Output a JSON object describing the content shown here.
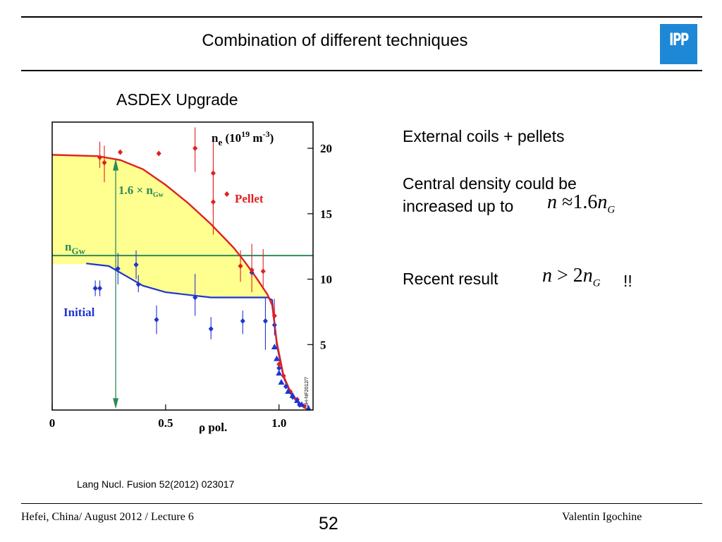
{
  "slide": {
    "title": "Combination of different techniques",
    "subtitle": "ASDEX Upgrade",
    "logo_text": "IPP",
    "logo_color": "#1f88d6"
  },
  "text": {
    "line1": "External coils  + pellets",
    "line2": "Central density could be",
    "line3": "increased up to",
    "line4": "Recent result",
    "exclaim": "!!"
  },
  "formula1": {
    "lhs": "n",
    "op": "≈",
    "coef": "1.6",
    "var": "n",
    "sub": "G"
  },
  "formula2": {
    "lhs": "n",
    "op": ">",
    "coef": "2",
    "var": "n",
    "sub": "G"
  },
  "citation": "Lang Nucl. Fusion 52(2012) 023017",
  "footer": {
    "left": "Hefei, China/ August 2012 / Lecture 6",
    "page": "52",
    "right": "Valentin Igochine"
  },
  "chart_data": {
    "type": "line",
    "ylabel": "n_e (10^19 m^-3)",
    "xlabel": "ρ  pol.",
    "xlim": [
      0,
      1.15
    ],
    "ylim": [
      0,
      22
    ],
    "x_ticks": [
      "0",
      "0.5",
      "1.0"
    ],
    "x_tick_values": [
      0,
      0.5,
      1.0
    ],
    "y_ticks": [
      "5",
      "10",
      "15",
      "20"
    ],
    "y_tick_values": [
      5,
      10,
      15,
      20
    ],
    "nGw_level": 11.8,
    "nGw_label": "n_Gw",
    "arrow_label": "1.6 × n_Gw",
    "watermark": "pH-NF2012/7",
    "colors": {
      "pellet": "#e02020",
      "initial": "#1e35d0",
      "ngw": "#2e8a5a",
      "fill": "#ffff90"
    },
    "series": [
      {
        "name": "Pellet",
        "x": [
          0,
          0.2,
          0.3,
          0.4,
          0.5,
          0.6,
          0.7,
          0.8,
          0.85,
          0.9,
          0.95,
          0.97,
          0.99,
          1.02,
          1.05,
          1.08,
          1.12
        ],
        "y": [
          19.5,
          19.4,
          19.1,
          18.4,
          17.2,
          15.8,
          14.2,
          12.4,
          11.3,
          10.1,
          8.8,
          8.0,
          5.2,
          2.6,
          1.4,
          0.7,
          0.1
        ]
      },
      {
        "name": "Initial",
        "x": [
          0.15,
          0.25,
          0.3,
          0.35,
          0.4,
          0.5,
          0.6,
          0.7,
          0.8,
          0.9,
          0.95,
          0.97,
          0.99,
          1.02,
          1.05,
          1.08,
          1.12
        ],
        "y": [
          11.2,
          11.0,
          10.5,
          10.0,
          9.5,
          9.0,
          8.8,
          8.6,
          8.6,
          8.6,
          8.6,
          8.4,
          5.0,
          2.5,
          1.3,
          0.6,
          0.1
        ]
      }
    ],
    "pellet_points": [
      {
        "x": 0.21,
        "y": 19.3,
        "lo": 18.5,
        "hi": 20.5
      },
      {
        "x": 0.23,
        "y": 18.9,
        "lo": 17.4,
        "hi": 20.2
      },
      {
        "x": 0.3,
        "y": 19.7,
        "lo": 19.7,
        "hi": 19.7
      },
      {
        "x": 0.47,
        "y": 19.6,
        "lo": 19.6,
        "hi": 19.6
      },
      {
        "x": 0.63,
        "y": 20.0,
        "lo": 18.2,
        "hi": 21.6
      },
      {
        "x": 0.71,
        "y": 18.1,
        "lo": 15.0,
        "hi": 20.9
      },
      {
        "x": 0.71,
        "y": 15.9,
        "lo": 13.4,
        "hi": 17.8
      },
      {
        "x": 0.77,
        "y": 16.5,
        "lo": 16.5,
        "hi": 16.5
      },
      {
        "x": 0.83,
        "y": 11.0,
        "lo": 9.8,
        "hi": 12.2
      },
      {
        "x": 0.88,
        "y": 10.7,
        "lo": 9.0,
        "hi": 12.7
      },
      {
        "x": 0.93,
        "y": 10.6,
        "lo": 9.2,
        "hi": 12.3
      },
      {
        "x": 0.98,
        "y": 7.2,
        "lo": 6.3,
        "hi": 8.5
      },
      {
        "x": 1.0,
        "y": 3.5,
        "lo": 3.5,
        "hi": 3.5
      },
      {
        "x": 1.02,
        "y": 2.6,
        "lo": 2.6,
        "hi": 2.6
      },
      {
        "x": 1.05,
        "y": 1.4,
        "lo": 1.4,
        "hi": 1.4
      },
      {
        "x": 1.08,
        "y": 0.8,
        "lo": 0.8,
        "hi": 0.8
      },
      {
        "x": 1.11,
        "y": 0.3,
        "lo": 0.3,
        "hi": 0.3
      }
    ],
    "initial_points": [
      {
        "x": 0.19,
        "y": 9.3,
        "lo": 8.7,
        "hi": 9.9
      },
      {
        "x": 0.21,
        "y": 9.3,
        "lo": 8.7,
        "hi": 9.9
      },
      {
        "x": 0.29,
        "y": 10.8,
        "lo": 9.6,
        "hi": 12.0
      },
      {
        "x": 0.37,
        "y": 11.1,
        "lo": 10.0,
        "hi": 12.2
      },
      {
        "x": 0.38,
        "y": 9.6,
        "lo": 9.0,
        "hi": 10.3
      },
      {
        "x": 0.46,
        "y": 6.9,
        "lo": 5.8,
        "hi": 8.0
      },
      {
        "x": 0.63,
        "y": 8.6,
        "lo": 7.2,
        "hi": 10.4
      },
      {
        "x": 0.7,
        "y": 6.2,
        "lo": 5.4,
        "hi": 7.1
      },
      {
        "x": 0.84,
        "y": 6.8,
        "lo": 5.8,
        "hi": 7.6
      },
      {
        "x": 0.88,
        "y": 10.5,
        "lo": 10.2,
        "hi": 10.8
      },
      {
        "x": 0.94,
        "y": 6.8,
        "lo": 4.6,
        "hi": 8.6
      },
      {
        "x": 0.98,
        "y": 6.5,
        "lo": 5.7,
        "hi": 7.4
      },
      {
        "x": 1.0,
        "y": 3.2,
        "lo": 3.2,
        "hi": 3.2
      },
      {
        "x": 1.03,
        "y": 1.8,
        "lo": 1.8,
        "hi": 1.8
      },
      {
        "x": 1.06,
        "y": 1.0,
        "lo": 1.0,
        "hi": 1.0
      },
      {
        "x": 1.09,
        "y": 0.4,
        "lo": 0.4,
        "hi": 0.4
      }
    ],
    "initial_triangles": [
      {
        "x": 0.98,
        "y": 4.8
      },
      {
        "x": 0.99,
        "y": 3.9
      },
      {
        "x": 1.0,
        "y": 2.8
      },
      {
        "x": 1.01,
        "y": 2.1
      },
      {
        "x": 1.04,
        "y": 1.4
      },
      {
        "x": 1.06,
        "y": 1.1
      },
      {
        "x": 1.08,
        "y": 0.7
      },
      {
        "x": 1.1,
        "y": 0.4
      },
      {
        "x": 1.13,
        "y": 0.1
      }
    ]
  }
}
